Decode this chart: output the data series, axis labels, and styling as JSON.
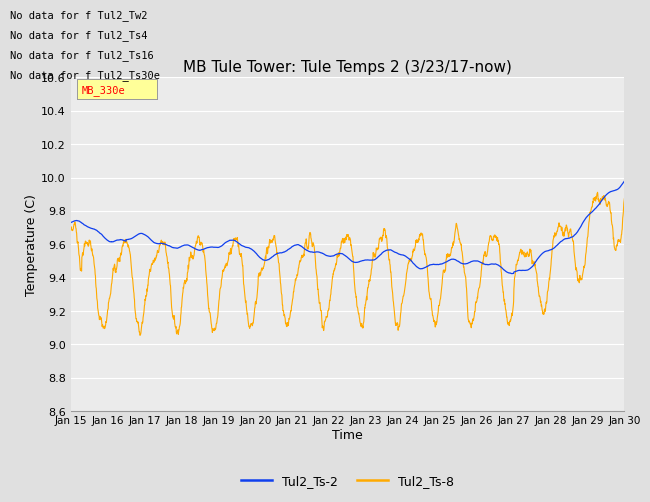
{
  "title": "MB Tule Tower: Tule Temps 2 (3/23/17-now)",
  "xlabel": "Time",
  "ylabel": "Temperature (C)",
  "ylim": [
    8.6,
    10.6
  ],
  "yticks": [
    8.6,
    8.8,
    9.0,
    9.2,
    9.4,
    9.6,
    9.8,
    10.0,
    10.2,
    10.4,
    10.6
  ],
  "xtick_labels": [
    "Jan 15",
    "Jan 16",
    "Jan 17",
    "Jan 18",
    "Jan 19",
    "Jan 20",
    "Jan 21",
    "Jan 22",
    "Jan 23",
    "Jan 24",
    "Jan 25",
    "Jan 26",
    "Jan 27",
    "Jan 28",
    "Jan 29",
    "Jan 30"
  ],
  "color_blue": "#1040ee",
  "color_orange": "#ffaa00",
  "legend_labels": [
    "Tul2_Ts-2",
    "Tul2_Ts-8"
  ],
  "no_data_texts": [
    "No data for f Tul2_Tw2",
    "No data for f Tul2_Ts4",
    "No data for f Tul2_Ts16",
    "No data for f Tul2_Ts30e"
  ],
  "tooltip_text": "MB_330e",
  "background_color": "#e0e0e0",
  "axes_bg_color": "#ebebeb",
  "grid_color": "#ffffff"
}
